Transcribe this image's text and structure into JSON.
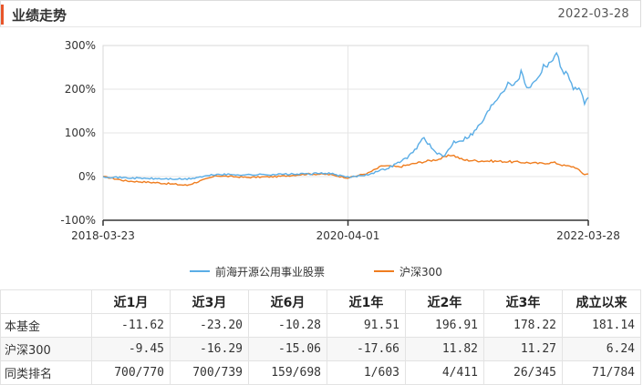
{
  "header": {
    "title": "业绩走势",
    "date": "2022-03-28"
  },
  "legend": {
    "fund": "前海开源公用事业股票",
    "index": "沪深300"
  },
  "colors": {
    "fund": "#5aade6",
    "index": "#ef7d1f",
    "accent": "#e8552a",
    "axis": "#333333",
    "grid": "#e5e5e5"
  },
  "chart_data": {
    "type": "line",
    "x_labels": [
      "2018-03-23",
      "2020-04-01",
      "2022-03-28"
    ],
    "y_ticks": [
      "300%",
      "200%",
      "100%",
      "0%",
      "-100%"
    ],
    "ylim": [
      -100,
      300
    ],
    "grid": true,
    "legend_position": "bottom",
    "series": [
      {
        "name": "前海开源公用事业股票",
        "points": [
          [
            "2018-03-23",
            0
          ],
          [
            "2018-06-01",
            -3
          ],
          [
            "2018-09-01",
            -5
          ],
          [
            "2018-12-01",
            -6
          ],
          [
            "2019-03-01",
            5
          ],
          [
            "2019-06-01",
            4
          ],
          [
            "2019-09-01",
            5
          ],
          [
            "2019-12-01",
            6
          ],
          [
            "2020-02-01",
            8
          ],
          [
            "2020-04-01",
            -2
          ],
          [
            "2020-06-01",
            5
          ],
          [
            "2020-08-01",
            20
          ],
          [
            "2020-09-20",
            40
          ],
          [
            "2020-10-15",
            55
          ],
          [
            "2020-11-15",
            90
          ],
          [
            "2020-12-01",
            75
          ],
          [
            "2020-12-20",
            55
          ],
          [
            "2021-01-15",
            45
          ],
          [
            "2021-02-15",
            80
          ],
          [
            "2021-03-15",
            85
          ],
          [
            "2021-04-15",
            100
          ],
          [
            "2021-05-15",
            130
          ],
          [
            "2021-06-15",
            170
          ],
          [
            "2021-07-15",
            200
          ],
          [
            "2021-08-01",
            220
          ],
          [
            "2021-08-20",
            210
          ],
          [
            "2021-09-05",
            240
          ],
          [
            "2021-09-25",
            205
          ],
          [
            "2021-10-15",
            215
          ],
          [
            "2021-11-15",
            255
          ],
          [
            "2021-12-10",
            268
          ],
          [
            "2021-12-25",
            278
          ],
          [
            "2022-01-10",
            245
          ],
          [
            "2022-01-30",
            225
          ],
          [
            "2022-02-15",
            200
          ],
          [
            "2022-03-01",
            205
          ],
          [
            "2022-03-15",
            168
          ],
          [
            "2022-03-28",
            181
          ]
        ]
      },
      {
        "name": "沪深300",
        "points": [
          [
            "2018-03-23",
            0
          ],
          [
            "2018-06-01",
            -10
          ],
          [
            "2018-09-01",
            -14
          ],
          [
            "2018-12-01",
            -20
          ],
          [
            "2019-03-01",
            2
          ],
          [
            "2019-06-01",
            -2
          ],
          [
            "2019-09-01",
            0
          ],
          [
            "2019-12-01",
            6
          ],
          [
            "2020-02-01",
            5
          ],
          [
            "2020-04-01",
            -3
          ],
          [
            "2020-06-01",
            8
          ],
          [
            "2020-07-15",
            25
          ],
          [
            "2020-09-01",
            22
          ],
          [
            "2020-11-01",
            32
          ],
          [
            "2021-01-01",
            40
          ],
          [
            "2021-02-10",
            50
          ],
          [
            "2021-03-15",
            38
          ],
          [
            "2021-05-01",
            36
          ],
          [
            "2021-07-01",
            35
          ],
          [
            "2021-09-01",
            33
          ],
          [
            "2021-11-01",
            30
          ],
          [
            "2021-12-15",
            32
          ],
          [
            "2022-01-15",
            25
          ],
          [
            "2022-02-15",
            22
          ],
          [
            "2022-03-15",
            5
          ],
          [
            "2022-03-28",
            6
          ]
        ]
      }
    ]
  },
  "table": {
    "headers": [
      "",
      "近1月",
      "近3月",
      "近6月",
      "近1年",
      "近2年",
      "近3年",
      "成立以来"
    ],
    "rows": [
      {
        "label": "本基金",
        "values": [
          "-11.62",
          "-23.20",
          "-10.28",
          "91.51",
          "196.91",
          "178.22",
          "181.14"
        ]
      },
      {
        "label": "沪深300",
        "values": [
          "-9.45",
          "-16.29",
          "-15.06",
          "-17.66",
          "11.82",
          "11.27",
          "6.24"
        ]
      },
      {
        "label": "同类排名",
        "values": [
          "700/770",
          "700/739",
          "159/698",
          "1/603",
          "4/411",
          "26/345",
          "71/784"
        ]
      }
    ]
  }
}
